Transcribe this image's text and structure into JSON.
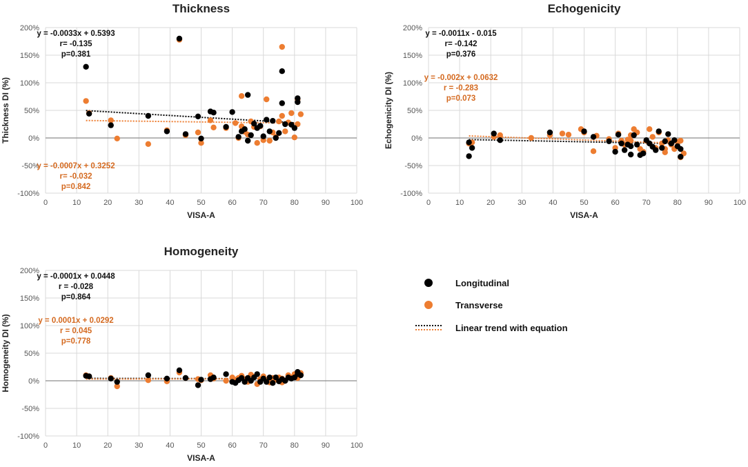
{
  "colors": {
    "longitudinal": "#000000",
    "transverse": "#ED7D31",
    "grid": "#D9D9D9"
  },
  "legend": {
    "longitudinal": "Longitudinal",
    "transverse": "Transverse",
    "trend": "Linear trend with equation"
  },
  "chart_data": [
    {
      "type": "scatter",
      "title": "Thickness",
      "xlabel": "VISA-A",
      "ylabel": "Thickness DI (%)",
      "xlim": [
        0,
        100
      ],
      "ylim": [
        -1,
        2
      ],
      "xticks": [
        "0",
        "10",
        "20",
        "30",
        "40",
        "50",
        "60",
        "70",
        "80",
        "90",
        "100"
      ],
      "yticks": [
        "-100%",
        "-50%",
        "0%",
        "50%",
        "100%",
        "150%",
        "200%"
      ],
      "grid": true,
      "series": [
        {
          "name": "Longitudinal",
          "points": [
            [
              13,
              1.29
            ],
            [
              14,
              0.44
            ],
            [
              21,
              0.23
            ],
            [
              33,
              0.4
            ],
            [
              39,
              0.12
            ],
            [
              43,
              1.8
            ],
            [
              45,
              0.07
            ],
            [
              49,
              0.39
            ],
            [
              50,
              -0.01
            ],
            [
              53,
              0.48
            ],
            [
              54,
              0.46
            ],
            [
              58,
              0.2
            ],
            [
              60,
              0.47
            ],
            [
              62,
              0.02
            ],
            [
              63,
              0.12
            ],
            [
              64,
              0.16
            ],
            [
              65,
              0.78
            ],
            [
              65,
              -0.05
            ],
            [
              66,
              0.05
            ],
            [
              67,
              0.26
            ],
            [
              68,
              0.18
            ],
            [
              69,
              0.22
            ],
            [
              70,
              0.03
            ],
            [
              71,
              0.33
            ],
            [
              72,
              0.12
            ],
            [
              73,
              0.31
            ],
            [
              74,
              0.0
            ],
            [
              75,
              0.09
            ],
            [
              76,
              0.63
            ],
            [
              76,
              1.21
            ],
            [
              77,
              0.25
            ],
            [
              79,
              0.24
            ],
            [
              80,
              0.18
            ],
            [
              81,
              0.72
            ],
            [
              81,
              0.65
            ]
          ],
          "trend": {
            "slope": -0.0033,
            "intercept": 0.5393,
            "x_range": [
              13,
              81
            ]
          }
        },
        {
          "name": "Transverse",
          "points": [
            [
              13,
              0.67
            ],
            [
              14,
              0.45
            ],
            [
              21,
              0.32
            ],
            [
              23,
              -0.01
            ],
            [
              33,
              -0.11
            ],
            [
              39,
              0.14
            ],
            [
              43,
              1.78
            ],
            [
              45,
              0.05
            ],
            [
              49,
              0.1
            ],
            [
              50,
              -0.09
            ],
            [
              53,
              0.32
            ],
            [
              54,
              0.19
            ],
            [
              58,
              0.18
            ],
            [
              61,
              0.27
            ],
            [
              62,
              0.0
            ],
            [
              63,
              0.76
            ],
            [
              63,
              0.21
            ],
            [
              64,
              0.11
            ],
            [
              65,
              0.06
            ],
            [
              66,
              0.3
            ],
            [
              67,
              0.2
            ],
            [
              68,
              -0.09
            ],
            [
              69,
              0.21
            ],
            [
              70,
              -0.04
            ],
            [
              71,
              0.7
            ],
            [
              72,
              -0.05
            ],
            [
              73,
              0.1
            ],
            [
              74,
              0.02
            ],
            [
              75,
              0.3
            ],
            [
              76,
              1.65
            ],
            [
              76,
              0.4
            ],
            [
              77,
              0.12
            ],
            [
              78,
              0.28
            ],
            [
              79,
              0.45
            ],
            [
              80,
              0.01
            ],
            [
              81,
              0.25
            ],
            [
              81,
              0.7
            ],
            [
              82,
              0.43
            ]
          ],
          "trend": {
            "slope": -0.0007,
            "intercept": 0.3252,
            "x_range": [
              13,
              81
            ]
          }
        }
      ],
      "annotations": [
        {
          "series": "Longitudinal",
          "lines": [
            "y = -0.0033x + 0.5393",
            "r= -0.135",
            "p=0.381"
          ]
        },
        {
          "series": "Transverse",
          "lines": [
            "y = -0.0007x + 0.3252",
            "r= -0.032",
            "p=0.842"
          ]
        }
      ]
    },
    {
      "type": "scatter",
      "title": "Echogenicity",
      "xlabel": "VISA-A",
      "ylabel": "Echogenicity DI (%)",
      "xlim": [
        0,
        100
      ],
      "ylim": [
        -1,
        2
      ],
      "xticks": [
        "0",
        "10",
        "20",
        "30",
        "40",
        "50",
        "60",
        "70",
        "80",
        "90",
        "100"
      ],
      "yticks": [
        "-100%",
        "-50%",
        "0%",
        "50%",
        "100%",
        "150%",
        "200%"
      ],
      "grid": true,
      "series": [
        {
          "name": "Longitudinal",
          "points": [
            [
              13,
              -0.33
            ],
            [
              13,
              -0.08
            ],
            [
              14,
              -0.18
            ],
            [
              21,
              0.08
            ],
            [
              23,
              -0.04
            ],
            [
              39,
              0.1
            ],
            [
              50,
              0.12
            ],
            [
              53,
              0.02
            ],
            [
              58,
              -0.06
            ],
            [
              60,
              -0.25
            ],
            [
              61,
              0.06
            ],
            [
              62,
              -0.1
            ],
            [
              63,
              -0.22
            ],
            [
              64,
              -0.12
            ],
            [
              65,
              -0.15
            ],
            [
              65,
              -0.3
            ],
            [
              66,
              0.05
            ],
            [
              67,
              -0.12
            ],
            [
              68,
              -0.31
            ],
            [
              69,
              -0.28
            ],
            [
              70,
              -0.04
            ],
            [
              71,
              -0.1
            ],
            [
              72,
              -0.16
            ],
            [
              73,
              -0.22
            ],
            [
              74,
              0.12
            ],
            [
              75,
              -0.18
            ],
            [
              76,
              -0.06
            ],
            [
              77,
              0.07
            ],
            [
              78,
              -0.1
            ],
            [
              79,
              -0.04
            ],
            [
              80,
              -0.15
            ],
            [
              81,
              -0.2
            ],
            [
              81,
              -0.34
            ]
          ],
          "trend": {
            "slope": -0.0011,
            "intercept": -0.015,
            "x_range": [
              13,
              81
            ]
          }
        },
        {
          "name": "Transverse",
          "points": [
            [
              13,
              -0.1
            ],
            [
              14,
              -0.08
            ],
            [
              21,
              0.02
            ],
            [
              23,
              0.05
            ],
            [
              33,
              0.0
            ],
            [
              39,
              0.05
            ],
            [
              43,
              0.08
            ],
            [
              45,
              0.06
            ],
            [
              49,
              0.16
            ],
            [
              50,
              0.1
            ],
            [
              53,
              -0.24
            ],
            [
              54,
              0.04
            ],
            [
              58,
              -0.02
            ],
            [
              60,
              -0.18
            ],
            [
              61,
              0.08
            ],
            [
              62,
              -0.05
            ],
            [
              63,
              -0.12
            ],
            [
              64,
              -0.03
            ],
            [
              65,
              -0.05
            ],
            [
              65,
              0.05
            ],
            [
              66,
              0.16
            ],
            [
              67,
              0.1
            ],
            [
              68,
              -0.2
            ],
            [
              69,
              -0.25
            ],
            [
              70,
              -0.05
            ],
            [
              71,
              0.16
            ],
            [
              72,
              0.02
            ],
            [
              73,
              -0.18
            ],
            [
              74,
              0.1
            ],
            [
              75,
              -0.1
            ],
            [
              76,
              -0.2
            ],
            [
              76,
              -0.26
            ],
            [
              77,
              -0.04
            ],
            [
              78,
              -0.12
            ],
            [
              79,
              -0.2
            ],
            [
              80,
              -0.07
            ],
            [
              81,
              -0.35
            ],
            [
              81,
              -0.05
            ],
            [
              82,
              -0.28
            ]
          ],
          "trend": {
            "slope": -0.002,
            "intercept": 0.0632,
            "x_range": [
              13,
              81
            ]
          }
        }
      ],
      "annotations": [
        {
          "series": "Longitudinal",
          "lines": [
            "y = -0.0011x - 0.015",
            "r= -0.142",
            "p=0.376"
          ]
        },
        {
          "series": "Transverse",
          "lines": [
            "y = -0.002x + 0.0632",
            "r = -0.283",
            "p=0.073"
          ]
        }
      ]
    },
    {
      "type": "scatter",
      "title": "Homogeneity",
      "xlabel": "VISA-A",
      "ylabel": "Homogeneity DI (%)",
      "xlim": [
        0,
        100
      ],
      "ylim": [
        -1,
        2
      ],
      "xticks": [
        "0",
        "10",
        "20",
        "30",
        "40",
        "50",
        "60",
        "70",
        "80",
        "90",
        "100"
      ],
      "yticks": [
        "-100%",
        "-50%",
        "0%",
        "50%",
        "100%",
        "150%",
        "200%"
      ],
      "grid": true,
      "series": [
        {
          "name": "Longitudinal",
          "points": [
            [
              13,
              0.09
            ],
            [
              14,
              0.08
            ],
            [
              21,
              0.04
            ],
            [
              23,
              -0.02
            ],
            [
              33,
              0.1
            ],
            [
              39,
              0.04
            ],
            [
              43,
              0.19
            ],
            [
              45,
              0.05
            ],
            [
              49,
              -0.08
            ],
            [
              50,
              0.02
            ],
            [
              53,
              0.03
            ],
            [
              54,
              0.06
            ],
            [
              58,
              0.12
            ],
            [
              60,
              -0.02
            ],
            [
              61,
              -0.04
            ],
            [
              62,
              0.01
            ],
            [
              63,
              0.05
            ],
            [
              64,
              -0.02
            ],
            [
              65,
              0.05
            ],
            [
              66,
              0.0
            ],
            [
              67,
              0.06
            ],
            [
              68,
              0.12
            ],
            [
              69,
              -0.02
            ],
            [
              70,
              0.04
            ],
            [
              71,
              -0.02
            ],
            [
              72,
              0.06
            ],
            [
              73,
              -0.04
            ],
            [
              74,
              0.06
            ],
            [
              75,
              -0.01
            ],
            [
              76,
              0.03
            ],
            [
              77,
              0.0
            ],
            [
              78,
              0.06
            ],
            [
              79,
              0.04
            ],
            [
              80,
              0.06
            ],
            [
              81,
              0.16
            ],
            [
              81,
              0.12
            ],
            [
              82,
              0.1
            ]
          ],
          "trend": {
            "slope": -0.0001,
            "intercept": 0.0448,
            "x_range": [
              13,
              81
            ]
          }
        },
        {
          "name": "Transverse",
          "points": [
            [
              13,
              0.1
            ],
            [
              14,
              0.08
            ],
            [
              21,
              0.05
            ],
            [
              23,
              -0.1
            ],
            [
              33,
              0.01
            ],
            [
              39,
              -0.01
            ],
            [
              43,
              0.15
            ],
            [
              45,
              0.05
            ],
            [
              49,
              0.03
            ],
            [
              50,
              0.01
            ],
            [
              53,
              0.1
            ],
            [
              54,
              0.04
            ],
            [
              58,
              0.0
            ],
            [
              60,
              0.06
            ],
            [
              61,
              0.02
            ],
            [
              62,
              0.05
            ],
            [
              63,
              0.09
            ],
            [
              64,
              0.03
            ],
            [
              65,
              -0.02
            ],
            [
              66,
              0.11
            ],
            [
              67,
              0.07
            ],
            [
              68,
              -0.06
            ],
            [
              69,
              0.03
            ],
            [
              70,
              0.08
            ],
            [
              71,
              0.01
            ],
            [
              72,
              -0.03
            ],
            [
              73,
              0.05
            ],
            [
              74,
              0.02
            ],
            [
              75,
              0.06
            ],
            [
              76,
              -0.03
            ],
            [
              76,
              0.04
            ],
            [
              77,
              0.0
            ],
            [
              78,
              0.1
            ],
            [
              79,
              0.06
            ],
            [
              80,
              0.12
            ],
            [
              81,
              0.05
            ],
            [
              81,
              0.08
            ],
            [
              82,
              0.14
            ]
          ],
          "trend": {
            "slope": 0.0001,
            "intercept": 0.0292,
            "x_range": [
              13,
              81
            ]
          }
        }
      ],
      "annotations": [
        {
          "series": "Longitudinal",
          "lines": [
            "y = -0.0001x + 0.0448",
            "r = -0.028",
            "p=0.864"
          ]
        },
        {
          "series": "Transverse",
          "lines": [
            "y = 0.0001x + 0.0292",
            "r = 0.045",
            "p=0.778"
          ]
        }
      ]
    }
  ]
}
